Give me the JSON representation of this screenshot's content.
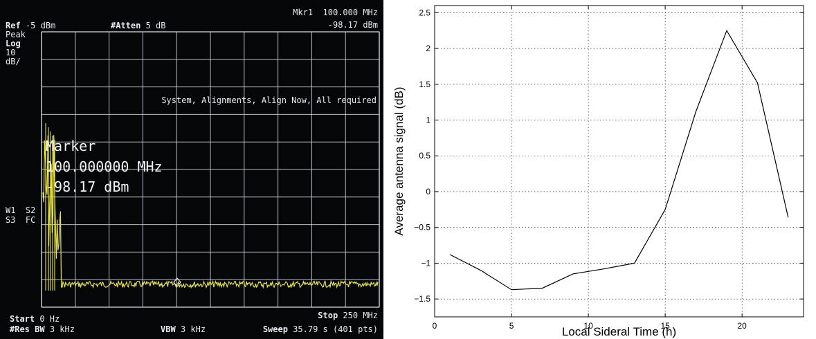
{
  "analyzer": {
    "ref_label": "Ref",
    "ref_value": "-5 dBm",
    "atten_label": "#Atten",
    "atten_value": "5 dB",
    "mkr_line1": "Mkr1  100.000 MHz",
    "mkr_line2": "-98.17 dBm",
    "detector": "Peak",
    "scale_type": "Log",
    "scale_value": "10",
    "scale_unit": "dB/",
    "alert": "System, Alignments, Align Now, All required",
    "marker_title": "Marker",
    "marker_freq": "100.000000 MHz",
    "marker_level": "-98.17 dBm",
    "w1s2": "W1  S2",
    "s3fc": "S3  FC",
    "start_label": "Start",
    "start_value": "0 Hz",
    "stop_label": "Stop",
    "stop_value": "250 MHz",
    "resbw_label": "#Res BW",
    "resbw_value": "3 kHz",
    "vbw_label": "VBW",
    "vbw_value": "3 kHz",
    "sweep_label": "Sweep",
    "sweep_value": "35.79 s (401 pts)",
    "trace_color": "#e6e24a",
    "grid_color": "#d8dde6"
  },
  "chart_data": {
    "type": "line",
    "xlabel": "Local Sideral Time (h)",
    "ylabel": "Average antenna signal (dB)",
    "xlim": [
      0,
      24
    ],
    "ylim": [
      -1.75,
      2.6
    ],
    "xticks": [
      0,
      5,
      10,
      15,
      20
    ],
    "yticks": [
      -1.5,
      -1,
      -0.5,
      0,
      0.5,
      1,
      1.5,
      2,
      2.5
    ],
    "xtick_labels": [
      "0",
      "5",
      "10",
      "15",
      "20"
    ],
    "ytick_labels": [
      "−1.5",
      "−1",
      "−0.5",
      "0",
      "0.5",
      "1",
      "1.5",
      "2",
      "2.5"
    ],
    "grid": true,
    "series": [
      {
        "x": [
          1,
          3,
          5,
          7,
          9,
          11,
          13,
          15,
          17,
          19,
          21,
          23
        ],
        "y": [
          -0.88,
          -1.1,
          -1.37,
          -1.35,
          -1.15,
          -1.08,
          -1.0,
          -0.25,
          1.12,
          2.25,
          1.52,
          -0.36
        ],
        "color": "#000000"
      }
    ]
  }
}
